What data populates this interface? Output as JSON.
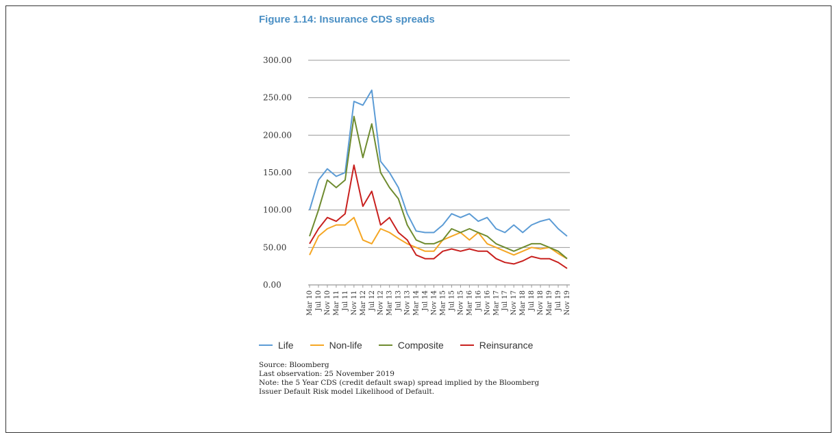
{
  "figure": {
    "title": "Figure 1.14: Insurance CDS spreads",
    "source": "Source: Bloomberg",
    "last_observation": "Last observation: 25 November 2019",
    "note_line1": "Note: the 5 Year CDS (credit default swap) spread implied by the Bloomberg",
    "note_line2": "Issuer Default Risk model Likelihood of Default."
  },
  "colors": {
    "Life": "#5b9bd5",
    "Non-life": "#f5a623",
    "Composite": "#6e8b2f",
    "Reinsurance": "#c8201e",
    "grid": "#999999"
  },
  "chart_data": {
    "type": "line",
    "title": "Figure 1.14: Insurance CDS spreads",
    "xlabel": "",
    "ylabel": "",
    "ylim": [
      0,
      300
    ],
    "yticks": [
      "0.00",
      "50.00",
      "100.00",
      "150.00",
      "200.00",
      "250.00",
      "300.00"
    ],
    "grid": true,
    "legend_position": "bottom",
    "x": [
      "Mar 10",
      "Jul 10",
      "Nov 10",
      "Mar 11",
      "Jul 11",
      "Nov 11",
      "Mar 12",
      "Jul 12",
      "Nov 12",
      "Mar 13",
      "Jul 13",
      "Nov 13",
      "Mar 14",
      "Jul 14",
      "Nov 14",
      "Mar 15",
      "Jul 15",
      "Nov 15",
      "Mar 16",
      "Jul 16",
      "Nov 16",
      "Mar 17",
      "Jul 17",
      "Nov 17",
      "Mar 18",
      "Jul 18",
      "Nov 18",
      "Mar 19",
      "Jul 19",
      "Nov 19"
    ],
    "series": [
      {
        "name": "Life",
        "values": [
          100,
          140,
          155,
          145,
          150,
          245,
          240,
          260,
          165,
          150,
          130,
          95,
          72,
          70,
          70,
          80,
          95,
          90,
          95,
          85,
          90,
          75,
          70,
          80,
          70,
          80,
          85,
          88,
          75,
          65
        ]
      },
      {
        "name": "Non-life",
        "values": [
          40,
          65,
          75,
          80,
          80,
          90,
          60,
          55,
          75,
          70,
          62,
          55,
          50,
          45,
          45,
          60,
          65,
          70,
          60,
          70,
          55,
          50,
          45,
          40,
          45,
          50,
          48,
          50,
          42,
          35
        ]
      },
      {
        "name": "Composite",
        "values": [
          65,
          100,
          140,
          130,
          140,
          225,
          170,
          215,
          150,
          130,
          115,
          80,
          60,
          55,
          55,
          60,
          75,
          70,
          75,
          70,
          65,
          55,
          50,
          45,
          50,
          55,
          55,
          50,
          45,
          35
        ]
      },
      {
        "name": "Reinsurance",
        "values": [
          55,
          75,
          90,
          85,
          95,
          160,
          105,
          125,
          80,
          90,
          70,
          60,
          40,
          35,
          35,
          45,
          48,
          45,
          48,
          45,
          45,
          35,
          30,
          28,
          32,
          38,
          35,
          35,
          30,
          22
        ]
      }
    ]
  }
}
